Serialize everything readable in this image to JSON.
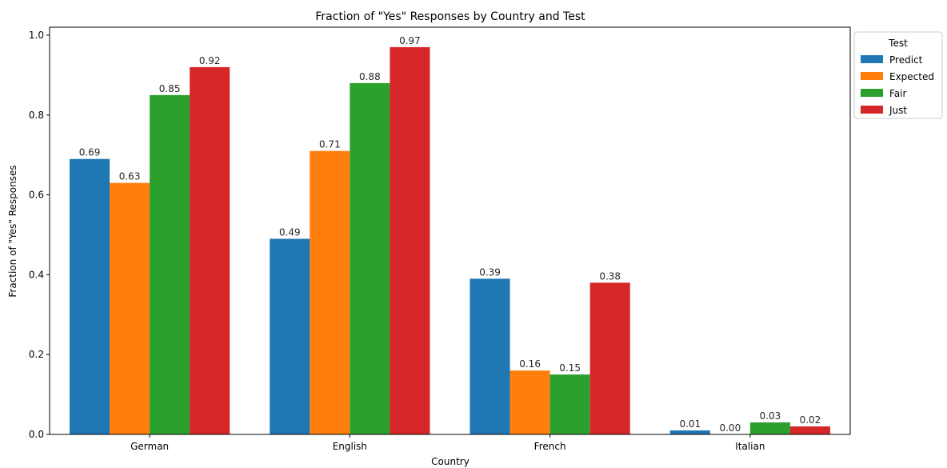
{
  "chart_data": {
    "type": "bar",
    "title": "Fraction of \"Yes\" Responses by Country and Test",
    "xlabel": "Country",
    "ylabel": "Fraction of \"Yes\" Responses",
    "categories": [
      "German",
      "English",
      "French",
      "Italian"
    ],
    "ylim": [
      0,
      1.02
    ],
    "yticks": [
      0.0,
      0.2,
      0.4,
      0.6,
      0.8,
      1.0
    ],
    "ytick_labels": [
      "0.0",
      "0.2",
      "0.4",
      "0.6",
      "0.8",
      "1.0"
    ],
    "grid": false,
    "legend": {
      "title": "Test",
      "placement": "outside-top-right"
    },
    "series": [
      {
        "name": "Predict",
        "color": "#1f77b4",
        "values": [
          0.69,
          0.49,
          0.39,
          0.01
        ],
        "labels": [
          "0.69",
          "0.49",
          "0.39",
          "0.01"
        ]
      },
      {
        "name": "Expected",
        "color": "#ff7f0e",
        "values": [
          0.63,
          0.71,
          0.16,
          0.0
        ],
        "labels": [
          "0.63",
          "0.71",
          "0.16",
          "0.00"
        ]
      },
      {
        "name": "Fair",
        "color": "#2ca02c",
        "values": [
          0.85,
          0.88,
          0.15,
          0.03
        ],
        "labels": [
          "0.85",
          "0.88",
          "0.15",
          "0.03"
        ]
      },
      {
        "name": "Just",
        "color": "#d62728",
        "values": [
          0.92,
          0.97,
          0.38,
          0.02
        ],
        "labels": [
          "0.92",
          "0.97",
          "0.38",
          "0.02"
        ]
      }
    ]
  }
}
